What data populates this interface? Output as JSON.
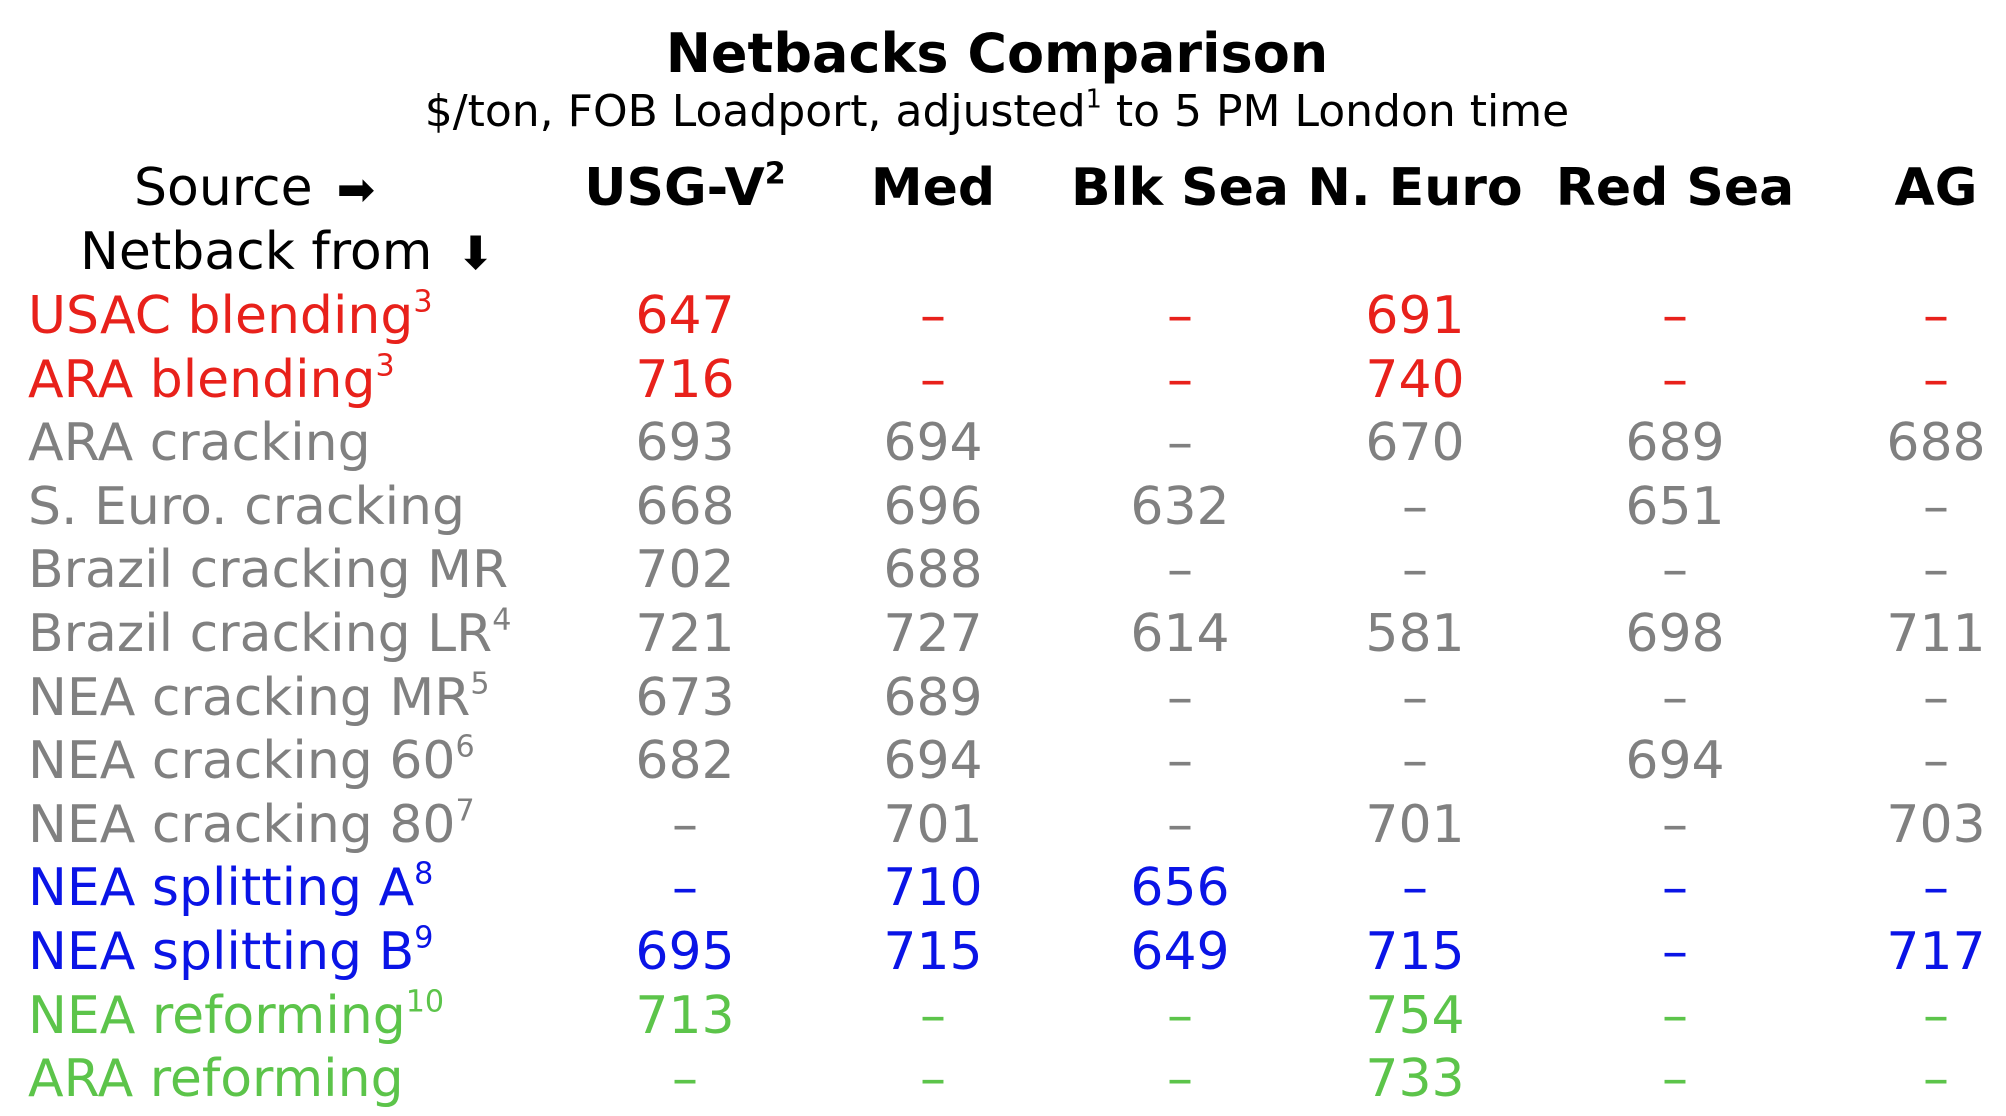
{
  "chart_data": {
    "type": "table",
    "title": "Netbacks Comparison",
    "subtitle": "$/ton, FOB Loadport, adjusted",
    "subtitle_sup": "1",
    "subtitle_tail": " to 5 PM London time",
    "source_label": "Source",
    "netback_label": "Netback from",
    "source_arrow": "➡",
    "netback_arrow": "⬇",
    "columns": [
      {
        "label": "USG-V",
        "sup": "2"
      },
      {
        "label": "Med",
        "sup": ""
      },
      {
        "label": "Blk Sea",
        "sup": ""
      },
      {
        "label": "N. Euro",
        "sup": ""
      },
      {
        "label": "Red Sea",
        "sup": ""
      },
      {
        "label": "AG",
        "sup": ""
      }
    ],
    "groups": {
      "blending": "#e8211b",
      "cracking": "#808080",
      "splitting": "#0a14e6",
      "reforming": "#5cc44a"
    },
    "rows": [
      {
        "label": "USAC blending",
        "sup": "3",
        "group": "blending",
        "values": [
          "647",
          "–",
          "–",
          "691",
          "–",
          "–"
        ]
      },
      {
        "label": "ARA blending",
        "sup": "3",
        "group": "blending",
        "values": [
          "716",
          "–",
          "–",
          "740",
          "–",
          "–"
        ]
      },
      {
        "label": "ARA cracking",
        "sup": "",
        "group": "cracking",
        "values": [
          "693",
          "694",
          "–",
          "670",
          "689",
          "688"
        ]
      },
      {
        "label": "S. Euro. cracking",
        "sup": "",
        "group": "cracking",
        "values": [
          "668",
          "696",
          "632",
          "–",
          "651",
          "–"
        ]
      },
      {
        "label": "Brazil cracking MR",
        "sup": "",
        "group": "cracking",
        "values": [
          "702",
          "688",
          "–",
          "–",
          "–",
          "–"
        ]
      },
      {
        "label": "Brazil cracking LR",
        "sup": "4",
        "group": "cracking",
        "values": [
          "721",
          "727",
          "614",
          "581",
          "698",
          "711"
        ]
      },
      {
        "label": "NEA cracking MR",
        "sup": "5",
        "group": "cracking",
        "values": [
          "673",
          "689",
          "–",
          "–",
          "–",
          "–"
        ]
      },
      {
        "label": "NEA cracking 60",
        "sup": "6",
        "group": "cracking",
        "values": [
          "682",
          "694",
          "–",
          "–",
          "694",
          "–"
        ]
      },
      {
        "label": "NEA cracking 80",
        "sup": "7",
        "group": "cracking",
        "values": [
          "–",
          "701",
          "–",
          "701",
          "–",
          "703"
        ]
      },
      {
        "label": "NEA splitting A",
        "sup": "8",
        "group": "splitting",
        "values": [
          "–",
          "710",
          "656",
          "–",
          "–",
          "–"
        ]
      },
      {
        "label": "NEA splitting B",
        "sup": "9",
        "group": "splitting",
        "values": [
          "695",
          "715",
          "649",
          "715",
          "–",
          "717"
        ]
      },
      {
        "label": "NEA reforming",
        "sup": "10",
        "group": "reforming",
        "values": [
          "713",
          "–",
          "–",
          "754",
          "–",
          "–"
        ]
      },
      {
        "label": "ARA reforming",
        "sup": "",
        "group": "reforming",
        "values": [
          "–",
          "–",
          "–",
          "733",
          "–",
          "–"
        ]
      }
    ]
  }
}
